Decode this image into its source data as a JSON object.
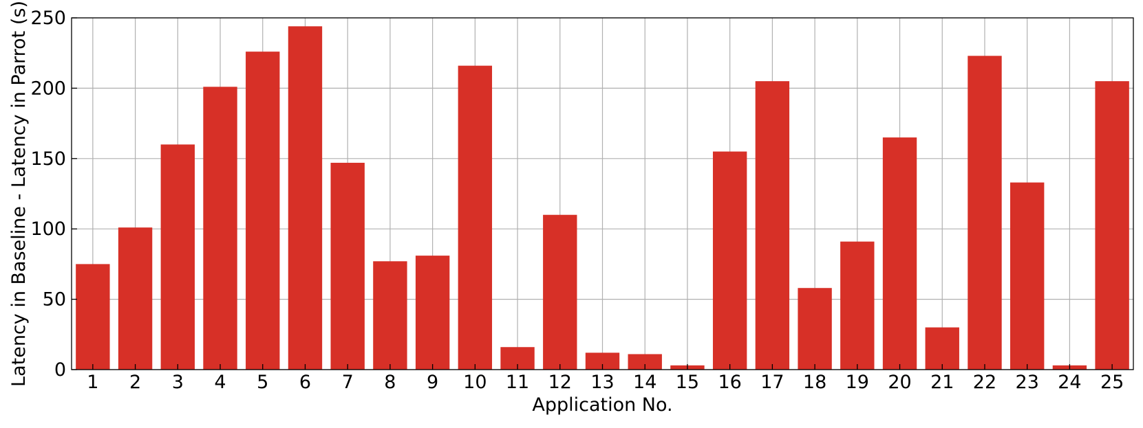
{
  "chart_data": {
    "type": "bar",
    "xlabel": "Application No.",
    "ylabel": "Latency in Baseline - Latency in Parrot (s)",
    "ylim": [
      0,
      250
    ],
    "yticks": [
      0,
      50,
      100,
      150,
      200,
      250
    ],
    "categories": [
      "1",
      "2",
      "3",
      "4",
      "5",
      "6",
      "7",
      "8",
      "9",
      "10",
      "11",
      "12",
      "13",
      "14",
      "15",
      "16",
      "17",
      "18",
      "19",
      "20",
      "21",
      "22",
      "23",
      "24",
      "25"
    ],
    "values": [
      75,
      101,
      160,
      201,
      226,
      244,
      147,
      77,
      81,
      216,
      16,
      110,
      12,
      11,
      3,
      155,
      205,
      58,
      91,
      165,
      30,
      223,
      133,
      3,
      205
    ],
    "bar_color": "#d73027",
    "grid": true,
    "legend": "none"
  }
}
